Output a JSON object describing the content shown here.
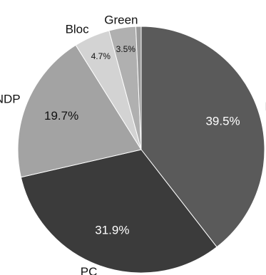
{
  "chart_data": {
    "type": "pie",
    "title": "",
    "slices": [
      {
        "label": "Liberal",
        "value": 39.5,
        "value_label": "39.5%",
        "color": "#5a5a5a",
        "label_color": "#ffffff"
      },
      {
        "label": "PC",
        "value": 31.9,
        "value_label": "31.9%",
        "color": "#3b3b3b",
        "label_color": "#ffffff"
      },
      {
        "label": "NDP",
        "value": 19.7,
        "value_label": "19.7%",
        "color": "#a3a3a3",
        "label_color": "#111111"
      },
      {
        "label": "Bloc",
        "value": 4.7,
        "value_label": "4.7%",
        "color": "#d3d3d3",
        "label_color": "#111111"
      },
      {
        "label": "Green",
        "value": 3.5,
        "value_label": "3.5%",
        "color": "#b0b0b0",
        "label_color": "#111111"
      },
      {
        "label": "",
        "value": 0.7,
        "value_label": "",
        "color": "#9a9a9a",
        "label_color": "#111111"
      }
    ],
    "start": "top",
    "direction": "clockwise",
    "legend": "none"
  }
}
